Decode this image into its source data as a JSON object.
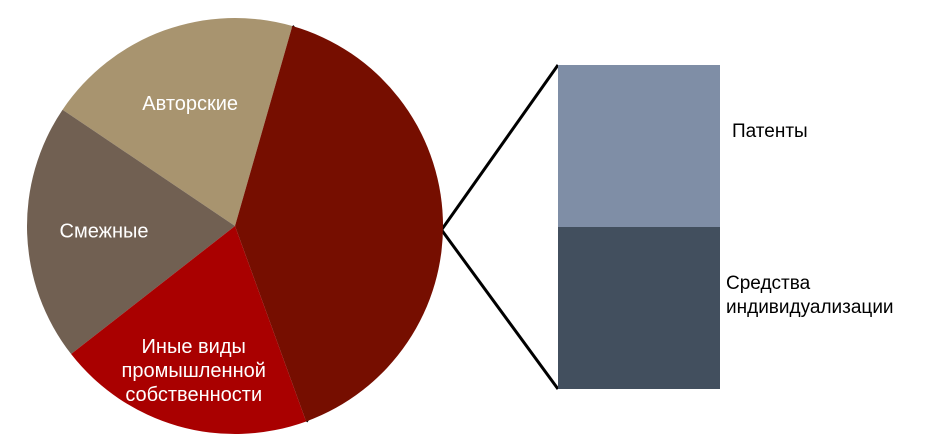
{
  "chart_data": {
    "type": "pie",
    "variant": "bar-of-pie",
    "slices": [
      {
        "label_lines": [
          "Авторские"
        ],
        "value": 20,
        "color": "#a8946f",
        "label_color": "#ffffff"
      },
      {
        "label_lines": [
          "Смежные"
        ],
        "value": 20,
        "color": "#716052",
        "label_color": "#ffffff"
      },
      {
        "label_lines": [
          "Иные виды",
          "промышленной",
          "собственности"
        ],
        "value": 20,
        "color": "#a90000",
        "label_color": "#ffffff"
      },
      {
        "label_lines": [
          ""
        ],
        "value": 40,
        "color": "#760e00",
        "label_color": "#ffffff",
        "expanded_into_bar": true
      }
    ],
    "secondary_bar": {
      "segments": [
        {
          "label_lines": [
            "Патенты"
          ],
          "value": 50,
          "color": "#7f8ea6",
          "label_color": "#000000"
        },
        {
          "label_lines": [
            "Средства",
            "индивидуализации"
          ],
          "value": 50,
          "color": "#424f5e",
          "label_color": "#000000"
        }
      ]
    },
    "connector_color": "#000000",
    "title": "",
    "legend": "none"
  }
}
